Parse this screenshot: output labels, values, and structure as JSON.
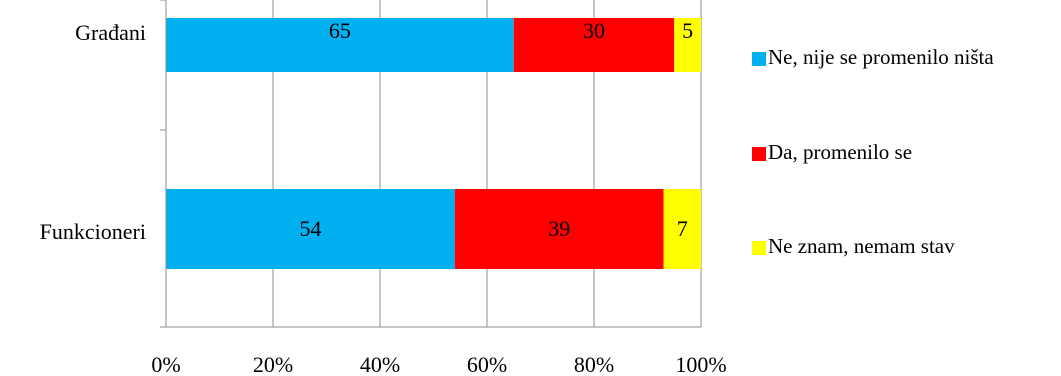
{
  "chart_data": {
    "type": "bar",
    "orientation": "horizontal",
    "stacked": "percent",
    "categories": [
      "Građani",
      "Funkcioneri"
    ],
    "series": [
      {
        "name": "Ne, nije se promenilo ništa",
        "values": [
          65,
          54
        ],
        "color": "#00B0F0"
      },
      {
        "name": "Da, promenilo se",
        "values": [
          30,
          39
        ],
        "color": "#FF0000"
      },
      {
        "name": "Ne znam, nemam stav",
        "values": [
          5,
          7
        ],
        "color": "#FFFF00"
      }
    ],
    "x_ticks": [
      "0%",
      "20%",
      "40%",
      "60%",
      "80%",
      "100%"
    ],
    "xlim": [
      0,
      100
    ],
    "grid": "vertical",
    "legend_position": "right",
    "title": "",
    "xlabel": "",
    "ylabel": ""
  }
}
